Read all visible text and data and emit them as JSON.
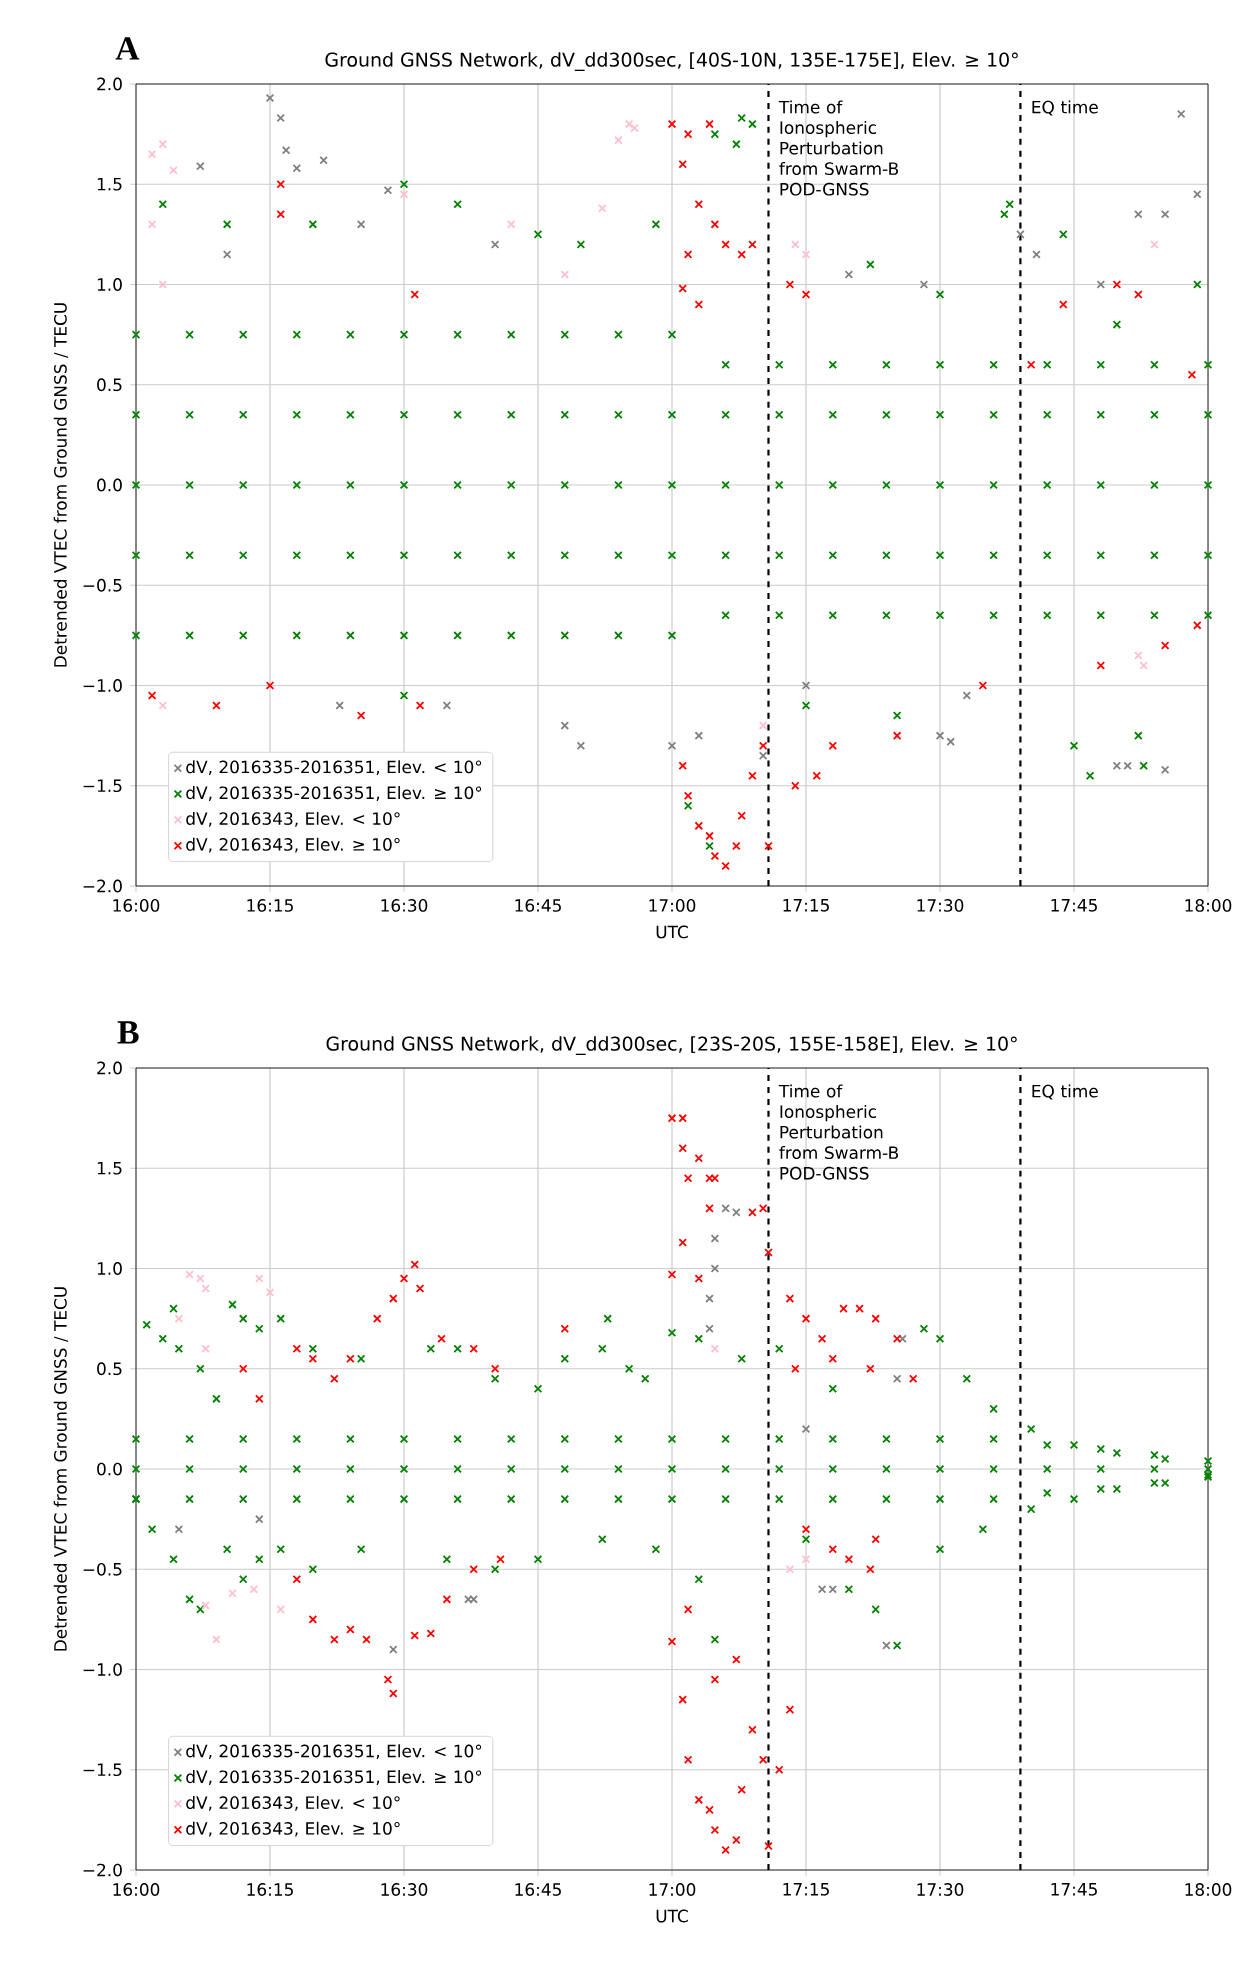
{
  "chart_data": [
    {
      "type": "scatter",
      "title": "Ground GNSS Network, dV_dd300sec, [40S-10N, 135E-175E], Elev. ≥ 10°",
      "xlabel": "UTC",
      "ylabel": "Detrended VTEC from Ground GNSS / TECU",
      "annotations": [
        "A"
      ],
      "xlim": [
        16,
        18
      ],
      "ylim": [
        -2,
        2
      ],
      "xticks": [
        {
          "value": 16,
          "label": "16:00"
        },
        {
          "value": 16.25,
          "label": "16:15"
        },
        {
          "value": 16.5,
          "label": "16:30"
        },
        {
          "value": 16.75,
          "label": "16:45"
        },
        {
          "value": 17,
          "label": "17:00"
        },
        {
          "value": 17.25,
          "label": "17:15"
        },
        {
          "value": 17.5,
          "label": "17:30"
        },
        {
          "value": 17.75,
          "label": "17:45"
        },
        {
          "value": 18,
          "label": "18:00"
        }
      ],
      "yticks": [
        {
          "value": -2,
          "label": "−2.0"
        },
        {
          "value": -1.5,
          "label": "−1.5"
        },
        {
          "value": -1,
          "label": "−1.0"
        },
        {
          "value": -0.5,
          "label": "−0.5"
        },
        {
          "value": 0,
          "label": "0.0"
        },
        {
          "value": 0.5,
          "label": "0.5"
        },
        {
          "value": 1,
          "label": "1.0"
        },
        {
          "value": 1.5,
          "label": "1.5"
        },
        {
          "value": 2,
          "label": "2.0"
        }
      ],
      "grid": true,
      "legend": "bottom left",
      "marker": "cross",
      "ref_lines": [
        {
          "axis": "x",
          "value": 17.18,
          "label": "Time of Ionospheric Perturbation from Swarm-B POD-GNSS",
          "color": "#000000",
          "line_style": "dashed"
        },
        {
          "axis": "x",
          "value": 17.65,
          "label": "EQ time",
          "color": "#000000",
          "line_style": "dashed"
        }
      ],
      "series": [
        {
          "name": "dV, 2016335-2016351, Elev. < 10°",
          "color": "#808080",
          "x": [
            16.25,
            16.27,
            16.28,
            16.3,
            16.12,
            16.35,
            16.47,
            16.42,
            16.67,
            16.17,
            16.83,
            16.8,
            16.58,
            16.38,
            17.0,
            17.05,
            17.17,
            17.25,
            17.5,
            17.52,
            17.65,
            17.68,
            17.87,
            17.92,
            17.95,
            17.98,
            17.83,
            17.85,
            17.92,
            17.33,
            17.47,
            17.8,
            17.55
          ],
          "values": [
            1.93,
            1.83,
            1.67,
            1.58,
            1.59,
            1.62,
            1.47,
            1.3,
            1.2,
            1.15,
            -1.3,
            -1.2,
            -1.1,
            -1.1,
            -1.3,
            -1.25,
            -1.35,
            -1.0,
            -1.25,
            -1.28,
            1.25,
            1.15,
            1.35,
            1.35,
            1.85,
            1.45,
            -1.4,
            -1.4,
            -1.42,
            1.05,
            1.0,
            1.0,
            -1.05
          ]
        },
        {
          "name": "dV, 2016335-2016351, Elev. ≥ 10°",
          "color": "#008000",
          "x": [
            17.13,
            17.15,
            17.12,
            17.63,
            17.62,
            17.73,
            16.05,
            16.17,
            16.33,
            16.5,
            16.6,
            16.75,
            16.83,
            16.97,
            17.08,
            17.37,
            17.5,
            17.83,
            17.98,
            17.03,
            17.07,
            17.42,
            17.75,
            17.78,
            17.87,
            17.88,
            16.5,
            17.25,
            16.0,
            16.1,
            16.2,
            16.3,
            16.4,
            16.5,
            16.6,
            16.7,
            16.8,
            16.9,
            17.0,
            17.1,
            17.2,
            17.3,
            17.4,
            17.5,
            17.6,
            17.7,
            17.8,
            17.9,
            18.0,
            16.0,
            16.1,
            16.2,
            16.3,
            16.4,
            16.5,
            16.6,
            16.7,
            16.8,
            16.9,
            17.0,
            17.1,
            17.2,
            17.3,
            17.4,
            17.5,
            17.6,
            17.7,
            17.8,
            17.9,
            18.0,
            16.0,
            16.1,
            16.2,
            16.3,
            16.4,
            16.5,
            16.6,
            16.7,
            16.8,
            16.9,
            17.0,
            17.1,
            17.2,
            17.3,
            17.4,
            17.5,
            17.6,
            17.7,
            17.8,
            17.9,
            18.0,
            16.0,
            16.1,
            16.2,
            16.3,
            16.4,
            16.5,
            16.6,
            16.7,
            16.8,
            16.9,
            17.0,
            17.1,
            17.2,
            17.3,
            17.4,
            17.5,
            17.6,
            17.7,
            17.8,
            17.9,
            18.0,
            16.0,
            16.1,
            16.2,
            16.3,
            16.4,
            16.5,
            16.6,
            16.7,
            16.8,
            16.9,
            17.0,
            17.1,
            17.2,
            17.3,
            17.4,
            17.5,
            17.6,
            17.7,
            17.8,
            17.9,
            18.0
          ],
          "values": [
            1.83,
            1.8,
            1.7,
            1.4,
            1.35,
            1.25,
            1.4,
            1.3,
            1.3,
            1.5,
            1.4,
            1.25,
            1.2,
            1.3,
            1.75,
            1.1,
            0.95,
            0.8,
            1.0,
            -1.6,
            -1.8,
            -1.15,
            -1.3,
            -1.45,
            -1.25,
            -1.4,
            -1.05,
            -1.1,
            0.75,
            0.75,
            0.75,
            0.75,
            0.75,
            0.75,
            0.75,
            0.75,
            0.75,
            0.75,
            0.75,
            0.6,
            0.6,
            0.6,
            0.6,
            0.6,
            0.6,
            0.6,
            0.6,
            0.6,
            0.6,
            0.35,
            0.35,
            0.35,
            0.35,
            0.35,
            0.35,
            0.35,
            0.35,
            0.35,
            0.35,
            0.35,
            0.35,
            0.35,
            0.35,
            0.35,
            0.35,
            0.35,
            0.35,
            0.35,
            0.35,
            0.35,
            0,
            0,
            0,
            0,
            0,
            0,
            0,
            0,
            0,
            0,
            0,
            0,
            0,
            0,
            0,
            0,
            0,
            0,
            0,
            0,
            0,
            -0.35,
            -0.35,
            -0.35,
            -0.35,
            -0.35,
            -0.35,
            -0.35,
            -0.35,
            -0.35,
            -0.35,
            -0.35,
            -0.35,
            -0.35,
            -0.35,
            -0.35,
            -0.35,
            -0.35,
            -0.35,
            -0.35,
            -0.35,
            -0.35,
            -0.75,
            -0.75,
            -0.75,
            -0.75,
            -0.75,
            -0.75,
            -0.75,
            -0.75,
            -0.75,
            -0.75,
            -0.75,
            -0.65,
            -0.65,
            -0.65,
            -0.65,
            -0.65,
            -0.65,
            -0.65,
            -0.65,
            -0.65,
            -0.65
          ]
        },
        {
          "name": "dV, 2016343, Elev. < 10°",
          "color": "#ffc0cb",
          "x": [
            16.03,
            16.05,
            16.07,
            16.03,
            16.05,
            16.92,
            16.93,
            16.9,
            16.87,
            16.7,
            16.5,
            16.8,
            17.23,
            17.25,
            16.05,
            17.17,
            17.88,
            17.87,
            17.9
          ],
          "values": [
            1.65,
            1.7,
            1.57,
            1.3,
            1.0,
            1.8,
            1.78,
            1.72,
            1.38,
            1.3,
            1.45,
            1.05,
            1.2,
            1.15,
            -1.1,
            -1.2,
            -0.9,
            -0.85,
            1.2
          ]
        },
        {
          "name": "dV, 2016343, Elev. ≥ 10°",
          "color": "#ff0000",
          "x": [
            17.0,
            17.03,
            17.07,
            17.02,
            17.05,
            17.08,
            17.1,
            17.03,
            17.02,
            17.05,
            16.27,
            16.27,
            16.52,
            17.13,
            17.15,
            17.22,
            17.25,
            17.83,
            17.87,
            17.73,
            16.03,
            16.15,
            16.25,
            16.42,
            16.53,
            17.02,
            17.03,
            17.05,
            17.07,
            17.08,
            17.1,
            17.12,
            17.13,
            17.15,
            17.17,
            17.18,
            17.23,
            17.27,
            17.3,
            17.42,
            17.58,
            17.8,
            17.92,
            17.98,
            17.97,
            17.67
          ],
          "values": [
            1.8,
            1.75,
            1.8,
            1.6,
            1.4,
            1.3,
            1.2,
            1.15,
            0.98,
            0.9,
            1.5,
            1.35,
            0.95,
            1.15,
            1.2,
            1.0,
            0.95,
            1.0,
            0.95,
            0.9,
            -1.05,
            -1.1,
            -1.0,
            -1.15,
            -1.1,
            -1.4,
            -1.55,
            -1.7,
            -1.75,
            -1.85,
            -1.9,
            -1.8,
            -1.65,
            -1.45,
            -1.3,
            -1.8,
            -1.5,
            -1.45,
            -1.3,
            -1.25,
            -1.0,
            -0.9,
            -0.8,
            -0.7,
            0.55,
            0.6
          ]
        }
      ]
    },
    {
      "type": "scatter",
      "title": "Ground GNSS Network, dV_dd300sec, [23S-20S, 155E-158E], Elev. ≥ 10°",
      "xlabel": "UTC",
      "ylabel": "Detrended VTEC from Ground GNSS / TECU",
      "annotations": [
        "B"
      ],
      "xlim": [
        16,
        18
      ],
      "ylim": [
        -2,
        2
      ],
      "xticks": [
        {
          "value": 16,
          "label": "16:00"
        },
        {
          "value": 16.25,
          "label": "16:15"
        },
        {
          "value": 16.5,
          "label": "16:30"
        },
        {
          "value": 16.75,
          "label": "16:45"
        },
        {
          "value": 17,
          "label": "17:00"
        },
        {
          "value": 17.25,
          "label": "17:15"
        },
        {
          "value": 17.5,
          "label": "17:30"
        },
        {
          "value": 17.75,
          "label": "17:45"
        },
        {
          "value": 18,
          "label": "18:00"
        }
      ],
      "yticks": [
        {
          "value": -2,
          "label": "−2.0"
        },
        {
          "value": -1.5,
          "label": "−1.5"
        },
        {
          "value": -1,
          "label": "−1.0"
        },
        {
          "value": -0.5,
          "label": "−0.5"
        },
        {
          "value": 0,
          "label": "0.0"
        },
        {
          "value": 0.5,
          "label": "0.5"
        },
        {
          "value": 1,
          "label": "1.0"
        },
        {
          "value": 1.5,
          "label": "1.5"
        },
        {
          "value": 2,
          "label": "2.0"
        }
      ],
      "grid": true,
      "legend": "bottom left",
      "marker": "cross",
      "ref_lines": [
        {
          "axis": "x",
          "value": 17.18,
          "label": "Time of Ionospheric Perturbation from Swarm-B POD-GNSS",
          "color": "#000000",
          "line_style": "dashed"
        },
        {
          "axis": "x",
          "value": 17.65,
          "label": "EQ time",
          "color": "#000000",
          "line_style": "dashed"
        }
      ],
      "series": [
        {
          "name": "dV, 2016335-2016351, Elev. < 10°",
          "color": "#808080",
          "x": [
            17.1,
            17.12,
            17.08,
            17.08,
            17.07,
            17.07,
            16.48,
            16.62,
            16.63,
            17.28,
            17.3,
            17.4,
            16.08,
            16.23,
            17.43,
            17.42,
            17.25
          ],
          "values": [
            1.3,
            1.28,
            1.15,
            1.0,
            0.85,
            0.7,
            -0.9,
            -0.65,
            -0.65,
            -0.6,
            -0.6,
            -0.88,
            -0.3,
            -0.25,
            0.65,
            0.45,
            0.2
          ]
        },
        {
          "name": "dV, 2016335-2016351, Elev. ≥ 10°",
          "color": "#008000",
          "x": [
            16.02,
            16.05,
            16.08,
            16.12,
            16.15,
            16.07,
            16.18,
            16.2,
            16.23,
            16.27,
            16.33,
            16.42,
            16.55,
            16.6,
            16.67,
            16.75,
            16.8,
            16.87,
            16.92,
            16.88,
            16.95,
            17.0,
            17.05,
            17.13,
            17.2,
            17.3,
            17.47,
            17.5,
            17.55,
            17.6,
            17.67,
            17.75,
            17.83,
            17.92,
            16.0,
            16.03,
            16.07,
            16.1,
            16.12,
            16.17,
            16.2,
            16.23,
            16.27,
            16.33,
            16.42,
            16.58,
            16.67,
            16.75,
            16.87,
            16.97,
            17.05,
            17.08,
            17.25,
            17.33,
            17.38,
            17.42,
            17.5,
            17.58,
            17.67,
            17.75,
            17.83,
            17.92,
            18.0,
            16.0,
            16.1,
            16.2,
            16.3,
            16.4,
            16.5,
            16.6,
            16.7,
            16.8,
            16.9,
            17.0,
            17.1,
            17.2,
            17.3,
            17.4,
            17.5,
            17.6,
            17.7,
            17.8,
            17.9,
            18.0,
            16.0,
            16.1,
            16.2,
            16.3,
            16.4,
            16.5,
            16.6,
            16.7,
            16.8,
            16.9,
            17.0,
            17.1,
            17.2,
            17.3,
            17.4,
            17.5,
            17.6,
            17.7,
            17.8,
            17.9,
            18.0,
            16.0,
            16.1,
            16.2,
            16.3,
            16.4,
            16.5,
            16.6,
            16.7,
            16.8,
            16.9,
            17.0,
            17.1,
            17.2,
            17.3,
            17.4,
            17.5,
            17.6,
            17.7,
            17.8,
            17.9,
            18.0
          ],
          "values": [
            0.72,
            0.65,
            0.6,
            0.5,
            0.35,
            0.8,
            0.82,
            0.75,
            0.7,
            0.75,
            0.6,
            0.55,
            0.6,
            0.6,
            0.45,
            0.4,
            0.55,
            0.6,
            0.5,
            0.75,
            0.45,
            0.68,
            0.65,
            0.55,
            0.6,
            0.4,
            0.7,
            0.65,
            0.45,
            0.3,
            0.2,
            0.12,
            0.08,
            0.05,
            -0.15,
            -0.3,
            -0.45,
            -0.65,
            -0.7,
            -0.4,
            -0.55,
            -0.45,
            -0.4,
            -0.5,
            -0.4,
            -0.45,
            -0.5,
            -0.45,
            -0.35,
            -0.4,
            -0.55,
            -0.85,
            -0.35,
            -0.6,
            -0.7,
            -0.88,
            -0.4,
            -0.3,
            -0.2,
            -0.15,
            -0.1,
            -0.07,
            -0.03,
            0.15,
            0.15,
            0.15,
            0.15,
            0.15,
            0.15,
            0.15,
            0.15,
            0.15,
            0.15,
            0.15,
            0.15,
            0.15,
            0.15,
            0.15,
            0.15,
            0.15,
            0.12,
            0.1,
            0.07,
            0.04,
            0,
            0,
            0,
            0,
            0,
            0,
            0,
            0,
            0,
            0,
            0,
            0,
            0,
            0,
            0,
            0,
            0,
            0,
            0,
            0,
            0,
            -0.15,
            -0.15,
            -0.15,
            -0.15,
            -0.15,
            -0.15,
            -0.15,
            -0.15,
            -0.15,
            -0.15,
            -0.15,
            -0.15,
            -0.15,
            -0.15,
            -0.15,
            -0.15,
            -0.15,
            -0.12,
            -0.1,
            -0.07,
            -0.04
          ]
        },
        {
          "name": "dV, 2016343, Elev. < 10°",
          "color": "#ffc0cb",
          "x": [
            16.1,
            16.12,
            16.13,
            16.23,
            16.25,
            16.08,
            16.13,
            16.15,
            16.18,
            16.22,
            16.27,
            16.13,
            17.22,
            17.25,
            17.08
          ],
          "values": [
            0.97,
            0.95,
            0.9,
            0.95,
            0.88,
            0.75,
            0.6,
            -0.85,
            -0.62,
            -0.6,
            -0.7,
            -0.68,
            -0.5,
            -0.45,
            0.6
          ]
        },
        {
          "name": "dV, 2016343, Elev. ≥ 10°",
          "color": "#ff0000",
          "x": [
            16.3,
            16.33,
            16.37,
            16.4,
            16.45,
            16.48,
            16.5,
            16.52,
            16.53,
            16.57,
            16.63,
            16.67,
            16.3,
            16.33,
            16.37,
            16.4,
            16.43,
            16.47,
            16.48,
            16.52,
            16.55,
            16.58,
            16.63,
            16.68,
            16.2,
            16.23,
            16.8,
            17.0,
            17.02,
            17.02,
            17.03,
            17.05,
            17.07,
            17.07,
            17.08,
            17.0,
            17.02,
            17.05,
            17.15,
            17.17,
            17.18,
            17.0,
            17.02,
            17.03,
            17.05,
            17.07,
            17.08,
            17.1,
            17.12,
            17.13,
            17.15,
            17.17,
            17.18,
            17.2,
            17.22,
            17.03,
            17.08,
            17.12,
            17.22,
            17.25,
            17.28,
            17.32,
            17.35,
            17.38,
            17.42,
            17.45,
            17.23,
            17.3,
            17.37,
            17.25,
            17.3,
            17.33,
            17.37,
            17.38
          ],
          "values": [
            0.6,
            0.55,
            0.45,
            0.55,
            0.75,
            0.85,
            0.95,
            1.02,
            0.9,
            0.65,
            0.6,
            0.5,
            -0.55,
            -0.75,
            -0.85,
            -0.8,
            -0.85,
            -1.05,
            -1.12,
            -0.83,
            -0.82,
            -0.65,
            -0.5,
            -0.45,
            0.5,
            0.35,
            0.7,
            1.75,
            1.75,
            1.6,
            1.45,
            1.55,
            1.45,
            1.3,
            1.45,
            0.97,
            1.13,
            0.95,
            1.28,
            1.3,
            1.08,
            -0.86,
            -1.15,
            -1.45,
            -1.65,
            -1.7,
            -1.8,
            -1.9,
            -1.85,
            -1.6,
            -1.3,
            -1.45,
            -1.88,
            -1.5,
            -1.2,
            -0.7,
            -1.05,
            -0.95,
            0.85,
            0.75,
            0.65,
            0.8,
            0.8,
            0.75,
            0.65,
            0.45,
            0.5,
            0.55,
            0.5,
            -0.3,
            -0.4,
            -0.45,
            -0.5,
            -0.35
          ]
        }
      ]
    }
  ]
}
